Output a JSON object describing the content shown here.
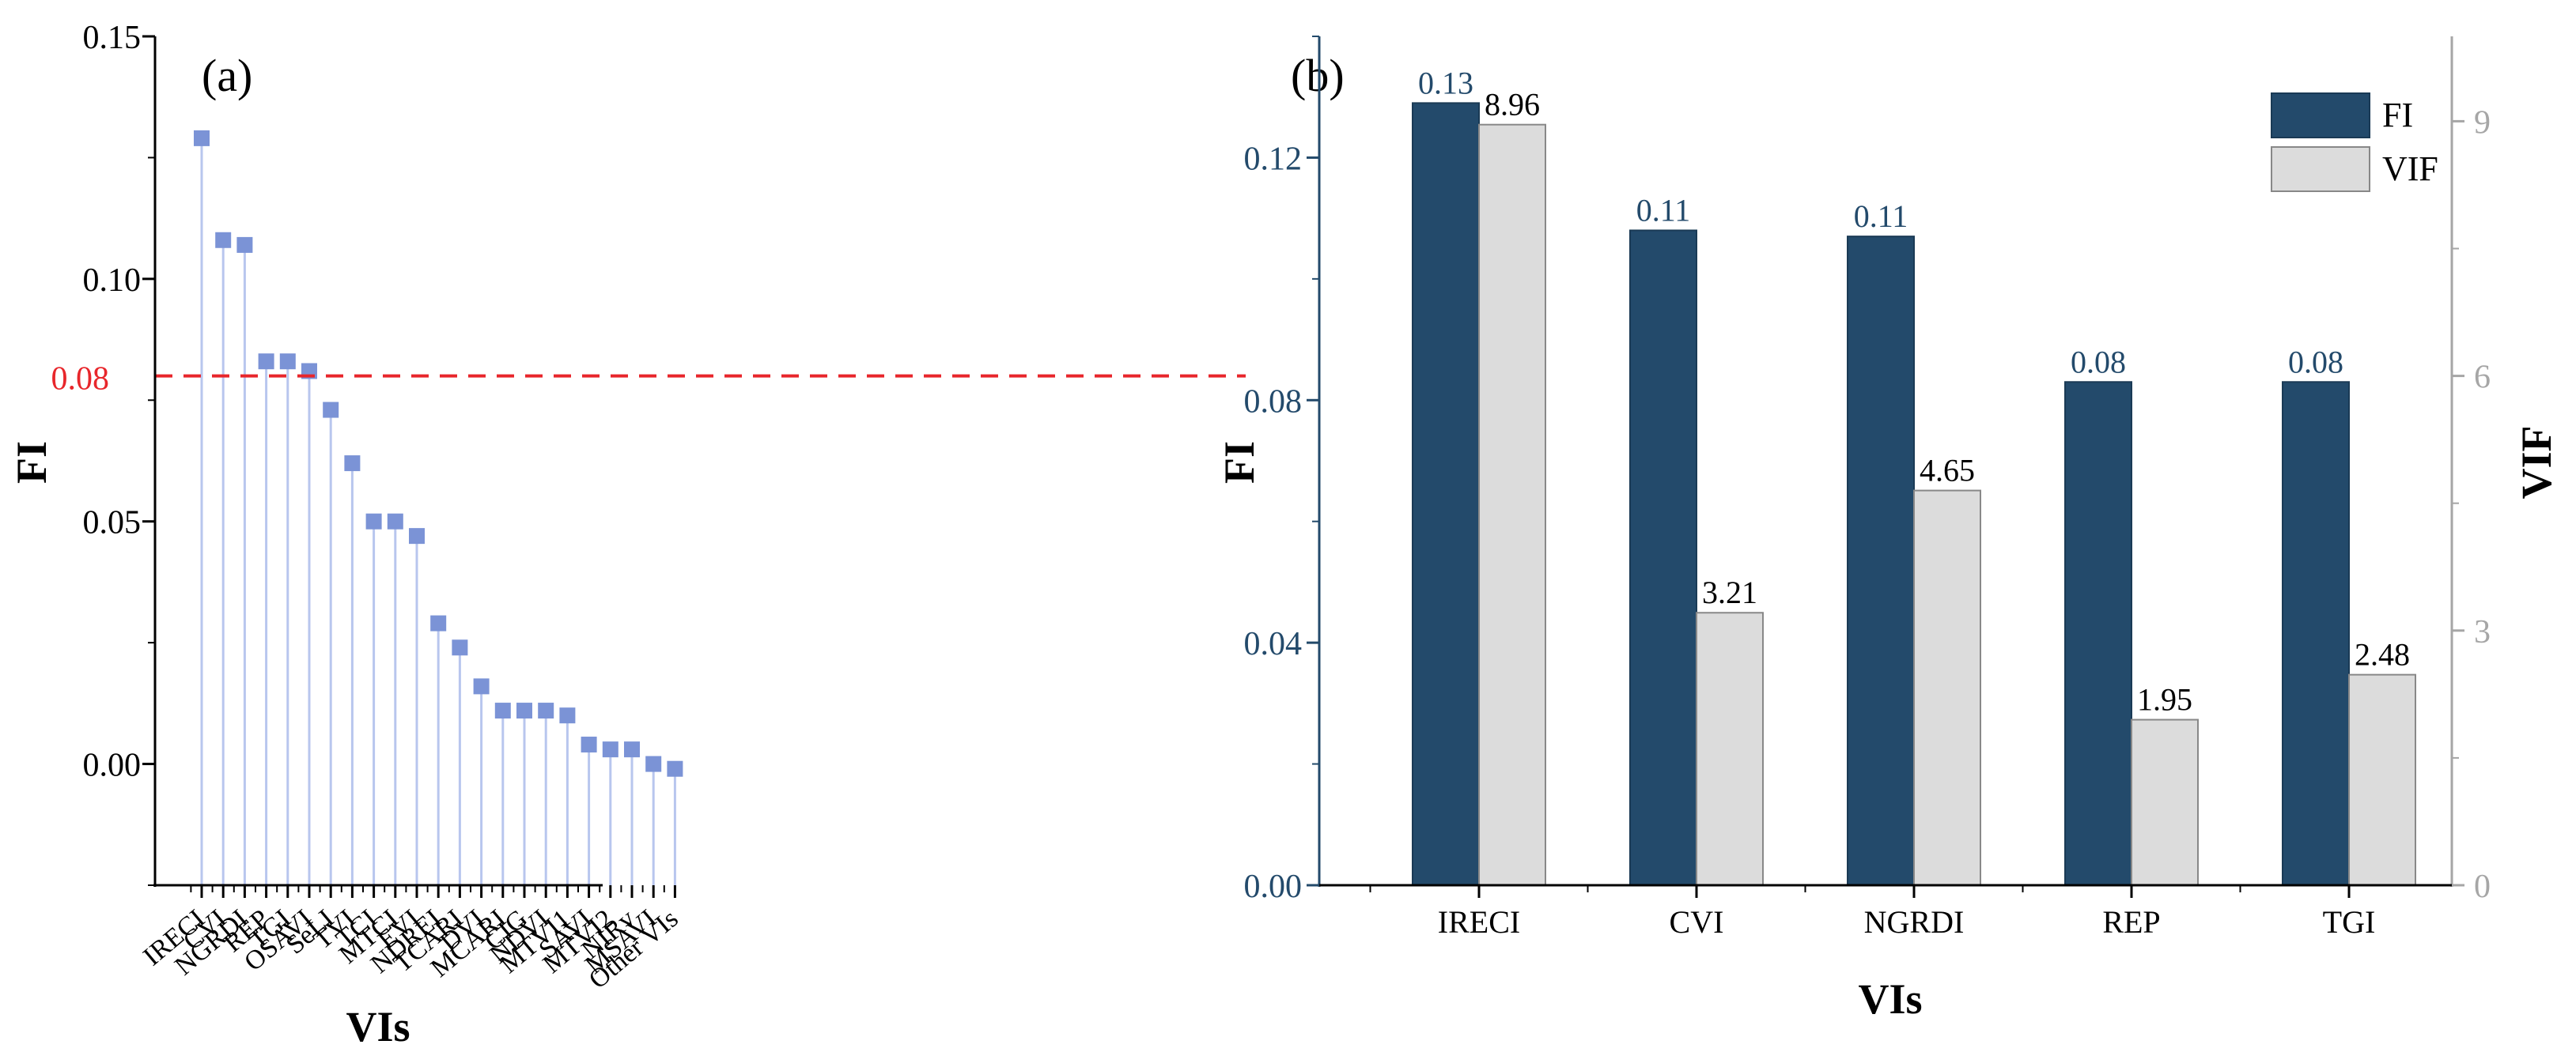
{
  "panel_a": {
    "panel_label": "(a)",
    "threshold_label": "0.08"
  },
  "panel_b": {
    "panel_label": "(b)"
  },
  "chart_data": [
    {
      "type": "scatter",
      "style": "lollipop",
      "panel": "(a)",
      "xlabel": "VIs",
      "ylabel": "FI",
      "categories": [
        "IRECI",
        "CVI",
        "NGRDI",
        "REP",
        "TGI",
        "OSAVI",
        "SeLI",
        "TVI",
        "TCI",
        "MTCI",
        "EVI",
        "NDREI",
        "TCARI",
        "DVI",
        "MCARI",
        "CIG",
        "NDVI",
        "MTVI1",
        "SAVI",
        "MTVI2",
        "NIRv",
        "MSAVI",
        "Other VIs"
      ],
      "values": [
        0.129,
        0.108,
        0.107,
        0.083,
        0.083,
        0.081,
        0.073,
        0.062,
        0.05,
        0.05,
        0.047,
        0.029,
        0.024,
        0.016,
        0.011,
        0.011,
        0.011,
        0.01,
        0.004,
        0.003,
        0.003,
        0.0,
        -0.001
      ],
      "ylim": [
        -0.025,
        0.15
      ],
      "yticks": [
        0.0,
        0.05,
        0.1,
        0.15
      ],
      "ytick_labels": [
        "0.00",
        "0.05",
        "0.10",
        "0.15"
      ],
      "threshold": 0.08,
      "threshold_label": "0.08",
      "colors": {
        "marker": "#7b93d6",
        "stem": "#b8c6ee",
        "threshold": "#e8262b"
      }
    },
    {
      "type": "bar",
      "panel": "(b)",
      "xlabel": "VIs",
      "ylabel": "FI",
      "y2label": "VIF",
      "categories": [
        "IRECI",
        "CVI",
        "NGRDI",
        "REP",
        "TGI"
      ],
      "series": [
        {
          "name": "FI",
          "axis": "left",
          "values": [
            0.129,
            0.108,
            0.107,
            0.083,
            0.083
          ],
          "labels": [
            "0.13",
            "0.11",
            "0.11",
            "0.08",
            "0.08"
          ],
          "color": "#234a6b"
        },
        {
          "name": "VIF",
          "axis": "right",
          "values": [
            8.96,
            3.21,
            4.65,
            1.95,
            2.48
          ],
          "labels": [
            "8.96",
            "3.21",
            "4.65",
            "1.95",
            "2.48"
          ],
          "color": "#dcdcdc"
        }
      ],
      "ylim": [
        0,
        0.14
      ],
      "yticks": [
        0.0,
        0.04,
        0.08,
        0.12
      ],
      "ytick_labels": [
        "0.00",
        "0.04",
        "0.08",
        "0.12"
      ],
      "y2lim": [
        0,
        10
      ],
      "y2ticks": [
        0,
        3,
        6,
        9
      ],
      "y2tick_labels": [
        "0",
        "3",
        "6",
        "9"
      ],
      "legend": "top-right"
    }
  ]
}
